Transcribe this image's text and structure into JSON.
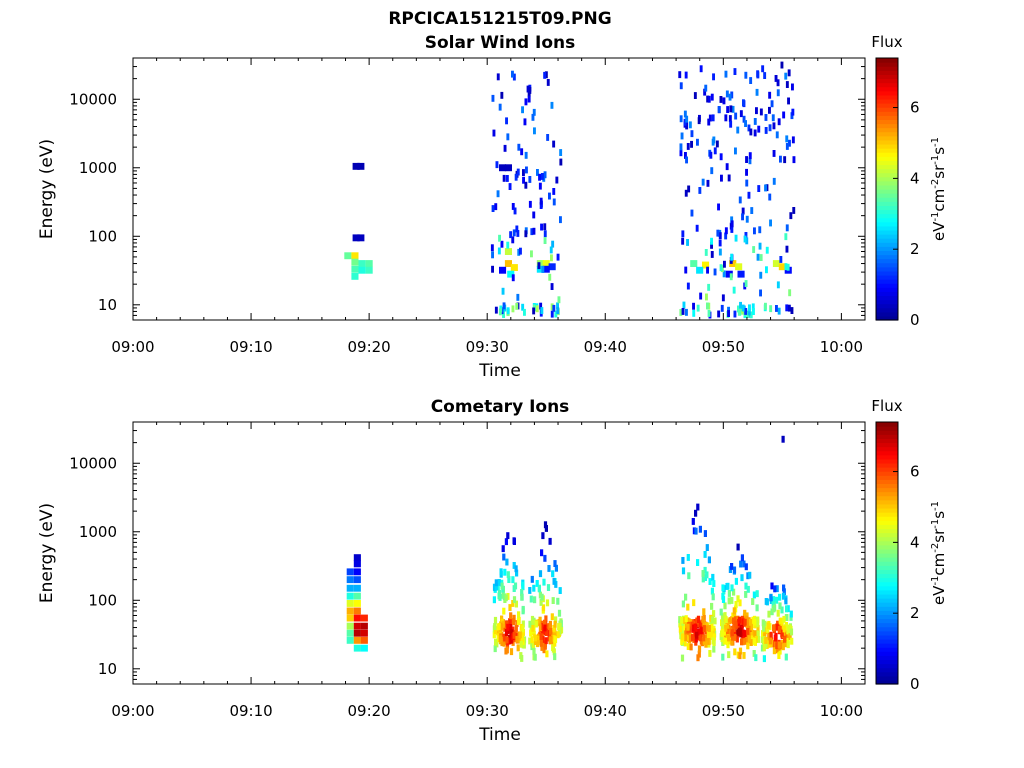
{
  "figure_title": "RPCICA151215T09.PNG",
  "colors": {
    "jet": [
      "#00008f",
      "#0000ff",
      "#0080ff",
      "#00ffff",
      "#80ff80",
      "#ffff00",
      "#ff8000",
      "#ff0000",
      "#800000"
    ]
  },
  "chart_data": [
    {
      "type": "heatmap",
      "title": "Solar Wind Ions",
      "xlabel": "Time",
      "ylabel": "Energy (eV)",
      "x_ticks": [
        "09:00",
        "09:10",
        "09:20",
        "09:30",
        "09:40",
        "09:50",
        "10:00"
      ],
      "xlim_minutes": [
        0,
        62
      ],
      "y_scale": "log",
      "y_ticks": [
        "10",
        "100",
        "1000",
        "10000"
      ],
      "ylim": [
        6,
        40000
      ],
      "colorbar": {
        "title": "Flux",
        "label": "eV-1cm-2sr-1s-1",
        "range": [
          0,
          7.4
        ],
        "ticks": [
          "0",
          "2",
          "4",
          "6"
        ]
      },
      "cells": [
        {
          "t": 18.9,
          "e": 1050,
          "v": 0.3
        },
        {
          "t": 19.3,
          "e": 1050,
          "v": 0.3
        },
        {
          "t": 18.9,
          "e": 95,
          "v": 0.4
        },
        {
          "t": 19.3,
          "e": 95,
          "v": 0.4
        },
        {
          "t": 18.2,
          "e": 52,
          "v": 3.5
        },
        {
          "t": 18.8,
          "e": 52,
          "v": 4.8
        },
        {
          "t": 18.8,
          "e": 42,
          "v": 3.6
        },
        {
          "t": 19.4,
          "e": 40,
          "v": 3.2
        },
        {
          "t": 20.0,
          "e": 40,
          "v": 3.4
        },
        {
          "t": 18.8,
          "e": 33,
          "v": 3.3
        },
        {
          "t": 19.4,
          "e": 32,
          "v": 3.0
        },
        {
          "t": 20.0,
          "e": 32,
          "v": 3.2
        },
        {
          "t": 18.8,
          "e": 26,
          "v": 3.1
        },
        {
          "t": 31.3,
          "e": 1000,
          "v": 0.4
        },
        {
          "t": 31.8,
          "e": 1000,
          "v": 0.4
        },
        {
          "t": 31.8,
          "e": 60,
          "v": 4.2
        },
        {
          "t": 31.8,
          "e": 40,
          "v": 5.1
        },
        {
          "t": 32.3,
          "e": 35,
          "v": 4.8
        },
        {
          "t": 31.3,
          "e": 32,
          "v": 0.9
        },
        {
          "t": 32.0,
          "e": 28,
          "v": 2.8
        },
        {
          "t": 34.5,
          "e": 40,
          "v": 3.9
        },
        {
          "t": 35.0,
          "e": 40,
          "v": 4.5
        },
        {
          "t": 35.5,
          "e": 36,
          "v": 1.2
        },
        {
          "t": 34.5,
          "e": 33,
          "v": 2.6
        },
        {
          "t": 35.0,
          "e": 33,
          "v": 1.0
        },
        {
          "t": 47.5,
          "e": 40,
          "v": 3.4
        },
        {
          "t": 48.5,
          "e": 38,
          "v": 4.7
        },
        {
          "t": 48.0,
          "e": 32,
          "v": 2.6
        },
        {
          "t": 50.8,
          "e": 40,
          "v": 5.0
        },
        {
          "t": 51.3,
          "e": 36,
          "v": 4.4
        },
        {
          "t": 50.5,
          "e": 28,
          "v": 0.9
        },
        {
          "t": 51.5,
          "e": 28,
          "v": 1.1
        },
        {
          "t": 54.5,
          "e": 40,
          "v": 4.3
        },
        {
          "t": 55.0,
          "e": 36,
          "v": 4.9
        },
        {
          "t": 55.5,
          "e": 32,
          "v": 1.0
        }
      ],
      "scatter_clusters": [
        {
          "t": [
            30.4,
            36.3
          ],
          "e": [
            7,
            26000
          ],
          "v": [
            0.3,
            3.0
          ],
          "n": 130
        },
        {
          "t": [
            46.3,
            56.0
          ],
          "e": [
            7,
            32000
          ],
          "v": [
            0.3,
            3.0
          ],
          "n": 240
        }
      ]
    },
    {
      "type": "heatmap",
      "title": "Cometary Ions",
      "xlabel": "Time",
      "ylabel": "Energy (eV)",
      "x_ticks": [
        "09:00",
        "09:10",
        "09:20",
        "09:30",
        "09:40",
        "09:50",
        "10:00"
      ],
      "xlim_minutes": [
        0,
        62
      ],
      "y_scale": "log",
      "y_ticks": [
        "10",
        "100",
        "1000",
        "10000"
      ],
      "ylim": [
        6,
        40000
      ],
      "colorbar": {
        "title": "Flux",
        "label": "eV-1cm-2sr-1s-1",
        "range": [
          0,
          7.4
        ],
        "ticks": [
          "0",
          "2",
          "4",
          "6"
        ]
      },
      "cells": [
        {
          "t": 19.0,
          "e": 420,
          "v": 0.5
        },
        {
          "t": 19.0,
          "e": 340,
          "v": 0.7
        },
        {
          "t": 18.4,
          "e": 260,
          "v": 1.4
        },
        {
          "t": 19.0,
          "e": 260,
          "v": 0.9
        },
        {
          "t": 18.4,
          "e": 200,
          "v": 1.8
        },
        {
          "t": 19.0,
          "e": 200,
          "v": 1.5
        },
        {
          "t": 18.4,
          "e": 150,
          "v": 2.2
        },
        {
          "t": 19.0,
          "e": 150,
          "v": 2.2
        },
        {
          "t": 18.4,
          "e": 115,
          "v": 3.0
        },
        {
          "t": 19.0,
          "e": 115,
          "v": 3.4
        },
        {
          "t": 18.4,
          "e": 90,
          "v": 4.4
        },
        {
          "t": 19.0,
          "e": 90,
          "v": 4.6
        },
        {
          "t": 18.4,
          "e": 70,
          "v": 5.2
        },
        {
          "t": 19.0,
          "e": 70,
          "v": 5.6
        },
        {
          "t": 18.4,
          "e": 55,
          "v": 5.0
        },
        {
          "t": 19.0,
          "e": 55,
          "v": 6.4
        },
        {
          "t": 19.6,
          "e": 55,
          "v": 6.2
        },
        {
          "t": 18.4,
          "e": 42,
          "v": 4.0
        },
        {
          "t": 19.0,
          "e": 42,
          "v": 6.8
        },
        {
          "t": 19.6,
          "e": 42,
          "v": 7.0
        },
        {
          "t": 18.4,
          "e": 33,
          "v": 3.4
        },
        {
          "t": 19.0,
          "e": 33,
          "v": 7.0
        },
        {
          "t": 19.6,
          "e": 33,
          "v": 6.8
        },
        {
          "t": 18.4,
          "e": 26,
          "v": 3.2
        },
        {
          "t": 19.0,
          "e": 26,
          "v": 5.4
        },
        {
          "t": 19.6,
          "e": 26,
          "v": 5.8
        },
        {
          "t": 19.0,
          "e": 20,
          "v": 3.0
        },
        {
          "t": 19.6,
          "e": 20,
          "v": 2.8
        }
      ],
      "bursts": [
        {
          "t0": 30.6,
          "t1": 33.2,
          "e_lo": 14,
          "e_hi": 1500,
          "core": 33,
          "vmax": 7.0,
          "n": 160
        },
        {
          "t0": 33.6,
          "t1": 36.3,
          "e_lo": 14,
          "e_hi": 1400,
          "core": 33,
          "vmax": 6.6,
          "n": 150
        },
        {
          "t0": 46.3,
          "t1": 49.3,
          "e_lo": 14,
          "e_hi": 3800,
          "core": 36,
          "vmax": 6.8,
          "n": 170
        },
        {
          "t0": 49.8,
          "t1": 53.0,
          "e_lo": 14,
          "e_hi": 900,
          "core": 36,
          "vmax": 7.1,
          "n": 190
        },
        {
          "t0": 53.3,
          "t1": 55.8,
          "e_lo": 14,
          "e_hi": 300,
          "core": 30,
          "vmax": 7.0,
          "n": 140
        },
        {
          "t0": 54.7,
          "t1": 55.1,
          "e_lo": 22000,
          "e_hi": 26000,
          "core": 24000,
          "vmax": 0.8,
          "n": 1
        }
      ]
    }
  ]
}
